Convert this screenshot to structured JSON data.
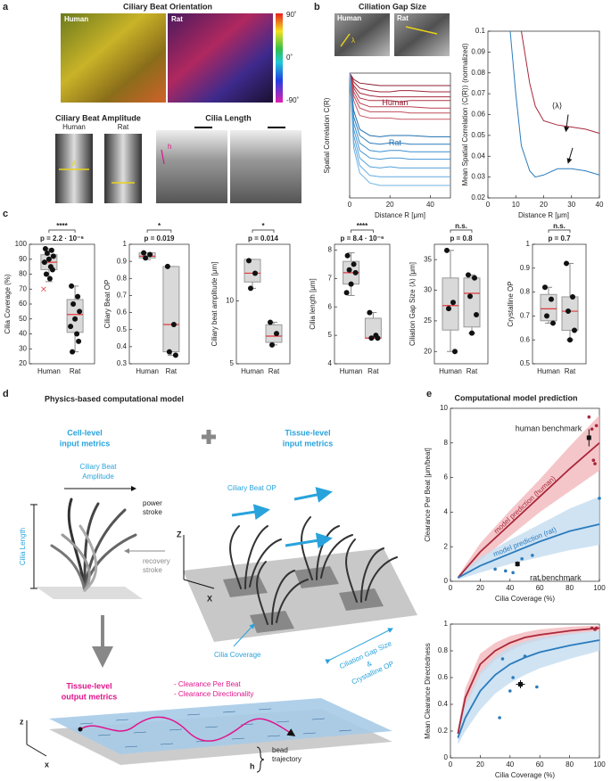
{
  "figure": {
    "panel_letters": [
      "a",
      "b",
      "c",
      "d",
      "e"
    ],
    "a": {
      "title": "Ciliary Beat Orientation",
      "human": "Human",
      "rat": "Rat",
      "colorbar": [
        "90˚",
        "0˚",
        "-90˚"
      ],
      "amplitude_title": "Ciliary Beat Amplitude",
      "amplitude_labels": [
        "Human",
        "Rat"
      ],
      "amplitude_marker": "A",
      "length_title": "Cilia Length",
      "length_marker": "h"
    },
    "b": {
      "title": "Ciliation Gap Size",
      "labels": [
        "Human",
        "Rat"
      ],
      "marker": "λ"
    },
    "d": {
      "title": "Physics-based computational model",
      "cell_level": [
        "Cell-level",
        "input metrics"
      ],
      "tissue_level": [
        "Tissue-level",
        "input metrics"
      ],
      "amplitude": [
        "Ciliary Beat",
        "Amplitude"
      ],
      "power": [
        "power",
        "stroke"
      ],
      "length": "Cilia Length",
      "recovery": [
        "recovery",
        "stroke"
      ],
      "beat_op": "Ciliary Beat OP",
      "coverage": "Cilia Coverage",
      "gap": [
        "Ciliation Gap Size",
        "&",
        "Crystalline OP"
      ],
      "axes": [
        "Z",
        "X"
      ],
      "output": [
        "Tissue-level",
        "output metrics"
      ],
      "metrics": [
        "- Clearance Per Beat",
        "- Clearance Directionality"
      ],
      "sheet_axes": [
        "z",
        "x"
      ],
      "h": "h",
      "bead": [
        "bead",
        "trajectory"
      ]
    }
  },
  "chart_data": [
    {
      "type": "line",
      "ylabel": "Spatial Correlation C(R)",
      "xlabel": "Distance R [μm]",
      "xlim": [
        0,
        50
      ],
      "xticks": [
        0,
        20,
        40
      ],
      "ylim": [
        0,
        1
      ],
      "x": [
        0,
        2,
        5,
        10,
        15,
        20,
        25,
        30,
        40,
        50
      ],
      "series": [
        {
          "color": "#8c1d33",
          "values": [
            1,
            0.95,
            0.92,
            0.91,
            0.9,
            0.9,
            0.9,
            0.9,
            0.9,
            0.9
          ]
        },
        {
          "color": "#9e2438",
          "values": [
            1,
            0.93,
            0.88,
            0.86,
            0.85,
            0.85,
            0.86,
            0.86,
            0.85,
            0.85
          ]
        },
        {
          "color": "#a8283b",
          "values": [
            1,
            0.9,
            0.84,
            0.82,
            0.81,
            0.81,
            0.81,
            0.81,
            0.81,
            0.81
          ]
        },
        {
          "color": "#b03344",
          "values": [
            1,
            0.88,
            0.8,
            0.78,
            0.78,
            0.78,
            0.77,
            0.78,
            0.78,
            0.78
          ]
        },
        {
          "color": "#b8404f",
          "values": [
            1,
            0.85,
            0.76,
            0.73,
            0.73,
            0.73,
            0.73,
            0.73,
            0.72,
            0.72
          ]
        },
        {
          "color": "#c04d5b",
          "values": [
            1,
            0.82,
            0.72,
            0.69,
            0.69,
            0.69,
            0.69,
            0.68,
            0.68,
            0.68
          ]
        },
        {
          "color": "#c85a66",
          "values": [
            1,
            0.78,
            0.66,
            0.64,
            0.64,
            0.64,
            0.63,
            0.63,
            0.63,
            0.63
          ]
        },
        {
          "color": "#1f6fb0",
          "values": [
            1,
            0.7,
            0.55,
            0.5,
            0.49,
            0.5,
            0.5,
            0.5,
            0.49,
            0.49
          ]
        },
        {
          "color": "#2b7bbd",
          "values": [
            1,
            0.65,
            0.5,
            0.44,
            0.43,
            0.44,
            0.44,
            0.43,
            0.43,
            0.43
          ]
        },
        {
          "color": "#3a8fd0",
          "values": [
            1,
            0.6,
            0.44,
            0.38,
            0.37,
            0.38,
            0.38,
            0.37,
            0.37,
            0.37
          ]
        },
        {
          "color": "#4898d6",
          "values": [
            1,
            0.55,
            0.38,
            0.32,
            0.31,
            0.32,
            0.32,
            0.31,
            0.31,
            0.31
          ]
        },
        {
          "color": "#55a1dc",
          "values": [
            1,
            0.5,
            0.32,
            0.25,
            0.24,
            0.25,
            0.24,
            0.24,
            0.24,
            0.24
          ]
        },
        {
          "color": "#62aae0",
          "values": [
            1,
            0.45,
            0.26,
            0.18,
            0.17,
            0.17,
            0.17,
            0.17,
            0.17,
            0.17
          ]
        },
        {
          "color": "#70b3e4",
          "values": [
            1,
            0.4,
            0.2,
            0.12,
            0.1,
            0.1,
            0.1,
            0.1,
            0.1,
            0.1
          ]
        }
      ],
      "annotations": [
        "Human",
        "Rat"
      ]
    },
    {
      "type": "line",
      "ylabel": "Mean Spatial Correlation ⟨C(R)⟩ (normalized)",
      "xlabel": "Distance R [μm]",
      "xlim": [
        0,
        40
      ],
      "xticks": [
        0,
        10,
        20,
        30,
        40
      ],
      "ylim": [
        0.02,
        0.1
      ],
      "yticks": [
        0.02,
        0.03,
        0.04,
        0.05,
        0.06,
        0.07,
        0.08,
        0.09,
        0.1
      ],
      "x": [
        8,
        10,
        12,
        15,
        17,
        20,
        25,
        30,
        35,
        40
      ],
      "series": [
        {
          "color": "#a8283b",
          "values": [
            null,
            null,
            0.1,
            0.075,
            0.064,
            0.057,
            0.055,
            0.054,
            0.053,
            0.051
          ]
        },
        {
          "color": "#2b7bbd",
          "values": [
            0.1,
            0.07,
            0.045,
            0.033,
            0.03,
            0.031,
            0.034,
            0.034,
            0.033,
            0.031
          ]
        }
      ],
      "annotations": [
        "⟨λ⟩"
      ]
    },
    {
      "type": "box",
      "ylabel": "Cilia Coverage (%)",
      "categories": [
        "Human",
        "Rat"
      ],
      "ylim": [
        20,
        100
      ],
      "yticks": [
        20,
        30,
        40,
        50,
        60,
        70,
        80,
        90,
        100
      ],
      "sig": "****",
      "p": "p = 2.2 · 10⁻⁶",
      "box_color": "#d9d9d9",
      "median_color": "#e0393e",
      "groups": [
        {
          "q1": 83,
          "median": 88,
          "q3": 93,
          "low": 75,
          "high": 97,
          "points": [
            97,
            96,
            94,
            92,
            90,
            88,
            85,
            83,
            80,
            77
          ],
          "outliers": [
            70
          ]
        },
        {
          "q1": 41,
          "median": 53,
          "q3": 63,
          "low": 28,
          "high": 72,
          "points": [
            72,
            65,
            60,
            55,
            50,
            45,
            40,
            35,
            28
          ],
          "outliers": []
        }
      ]
    },
    {
      "type": "box",
      "ylabel": "Ciliary Beat OP",
      "categories": [
        "Human",
        "Rat"
      ],
      "ylim": [
        0.3,
        1
      ],
      "yticks": [
        0.3,
        0.4,
        0.5,
        0.6,
        0.7,
        0.8,
        0.9,
        1
      ],
      "sig": "*",
      "p": "p = 0.019",
      "box_color": "#d9d9d9",
      "median_color": "#e0393e",
      "groups": [
        {
          "q1": 0.92,
          "median": 0.93,
          "q3": 0.95,
          "low": 0.91,
          "high": 0.95,
          "points": [
            0.95,
            0.94,
            0.92
          ],
          "outliers": []
        },
        {
          "q1": 0.37,
          "median": 0.53,
          "q3": 0.87,
          "low": 0.35,
          "high": 0.87,
          "points": [
            0.87,
            0.53,
            0.37,
            0.35
          ],
          "outliers": []
        }
      ]
    },
    {
      "type": "box",
      "ylabel": "Ciliary beat amplitude [μm]",
      "categories": [
        "Human",
        "Rat"
      ],
      "ylim": [
        5,
        14.5
      ],
      "yticks": [
        5,
        10
      ],
      "sig": "*",
      "p": "p = 0.014",
      "box_color": "#d9d9d9",
      "median_color": "#e0393e",
      "groups": [
        {
          "q1": 11.5,
          "median": 12.2,
          "q3": 13.3,
          "low": 11,
          "high": 13.3,
          "points": [
            13.2,
            12.2,
            11
          ],
          "outliers": []
        },
        {
          "q1": 6.7,
          "median": 7.2,
          "q3": 8.1,
          "low": 6.5,
          "high": 8.3,
          "points": [
            8.3,
            7.4,
            6.5
          ],
          "outliers": []
        }
      ]
    },
    {
      "type": "box",
      "ylabel": "Cilia length [μm]",
      "categories": [
        "Human",
        "Rat"
      ],
      "ylim": [
        4,
        8.2
      ],
      "yticks": [
        4,
        5,
        6,
        7,
        8
      ],
      "sig": "****",
      "p": "p = 8.4 · 10⁻⁶",
      "box_color": "#d9d9d9",
      "median_color": "#e0393e",
      "groups": [
        {
          "q1": 6.8,
          "median": 7.2,
          "q3": 7.6,
          "low": 6.4,
          "high": 7.9,
          "points": [
            7.8,
            7.5,
            7.3,
            7.2,
            6.8,
            6.5
          ],
          "outliers": []
        },
        {
          "q1": 4.9,
          "median": 4.9,
          "q3": 5.6,
          "low": 4.9,
          "high": 5.8,
          "points": [
            5.8,
            5,
            4.9,
            4.9
          ],
          "outliers": []
        }
      ]
    },
    {
      "type": "box",
      "ylabel": "Ciliation Gap Size ⟨λ⟩ [μm]",
      "categories": [
        "Human",
        "Rat"
      ],
      "ylim": [
        18,
        37.5
      ],
      "yticks": [
        20,
        25,
        30,
        35
      ],
      "sig": "n.s.",
      "p": "p = 0.8",
      "box_color": "#d9d9d9",
      "median_color": "#e0393e",
      "groups": [
        {
          "q1": 23.5,
          "median": 27.5,
          "q3": 32,
          "low": 20,
          "high": 36.5,
          "points": [
            36.5,
            28,
            27,
            20
          ],
          "outliers": []
        },
        {
          "q1": 24,
          "median": 29.5,
          "q3": 32,
          "low": 23,
          "high": 32.5,
          "points": [
            32.5,
            32,
            29,
            26,
            23
          ],
          "outliers": []
        }
      ]
    },
    {
      "type": "box",
      "ylabel": "Crystalline OP",
      "categories": [
        "Human",
        "Rat"
      ],
      "ylim": [
        0.5,
        1
      ],
      "yticks": [
        0.5,
        0.6,
        0.7,
        0.8,
        0.9,
        1
      ],
      "sig": "n.s.",
      "p": "p = 0.7",
      "box_color": "#d9d9d9",
      "median_color": "#e0393e",
      "groups": [
        {
          "q1": 0.68,
          "median": 0.73,
          "q3": 0.79,
          "low": 0.67,
          "high": 0.82,
          "points": [
            0.82,
            0.77,
            0.7,
            0.67
          ],
          "outliers": []
        },
        {
          "q1": 0.64,
          "median": 0.72,
          "q3": 0.78,
          "low": 0.6,
          "high": 0.92,
          "points": [
            0.92,
            0.78,
            0.72,
            0.64,
            0.6
          ],
          "outliers": []
        }
      ]
    },
    {
      "type": "line",
      "title": "Computational model prediction",
      "ylabel": "Clearance Per Beat [μm/beat]",
      "xlabel": "Cilia Coverage (%)",
      "xlim": [
        0,
        100
      ],
      "xticks": [
        0,
        20,
        40,
        60,
        80,
        100
      ],
      "ylim": [
        0,
        10
      ],
      "yticks": [
        0,
        2,
        4,
        6,
        8,
        10
      ],
      "x": [
        5,
        20,
        40,
        60,
        80,
        100
      ],
      "series": [
        {
          "name": "model prediction (human)",
          "color": "#a8283b",
          "band_color": "#f2b8bb",
          "values": [
            0.2,
            1.7,
            3.3,
            4.9,
            6.5,
            8
          ],
          "lower": [
            0.15,
            1.2,
            2.6,
            4,
            5.2,
            6.4
          ],
          "upper": [
            0.3,
            2.2,
            4.1,
            5.9,
            7.8,
            9.6
          ]
        },
        {
          "name": "model prediction (rat)",
          "color": "#2b7bbd",
          "band_color": "#c3dcf0",
          "values": [
            0.2,
            0.9,
            1.6,
            2.3,
            2.9,
            3.3
          ],
          "lower": [
            0.1,
            0.5,
            1,
            1.4,
            1.8,
            2.1
          ],
          "upper": [
            0.3,
            1.4,
            2.4,
            3.3,
            4.2,
            4.9
          ]
        }
      ],
      "points": [
        {
          "color": "#a8283b",
          "x": [
            93,
            95,
            96,
            97,
            98
          ],
          "y": [
            9.5,
            8.8,
            7,
            6.8,
            9
          ]
        },
        {
          "color": "#2b7bbd",
          "x": [
            30,
            37,
            42,
            48,
            55,
            100
          ],
          "y": [
            0.7,
            0.6,
            0.5,
            1.3,
            1.5,
            4.8
          ]
        }
      ],
      "benchmarks": [
        {
          "label": "human benchmark",
          "x": 93,
          "y": 8.3,
          "yerr": 0.5
        },
        {
          "label": "rat benchmark",
          "x": 45,
          "y": 1,
          "yerr": 0.15
        }
      ]
    },
    {
      "type": "line",
      "ylabel": "Mean Clearance Directedness",
      "xlabel": "Cilia Coverage (%)",
      "xlim": [
        0,
        100
      ],
      "xticks": [
        0,
        20,
        40,
        60,
        80,
        100
      ],
      "ylim": [
        0,
        1
      ],
      "yticks": [
        0,
        0.2,
        0.4,
        0.6,
        0.8,
        1
      ],
      "x": [
        5,
        10,
        20,
        30,
        40,
        50,
        60,
        80,
        100
      ],
      "series": [
        {
          "color": "#a8283b",
          "band_color": "#f2b8bb",
          "values": [
            0.18,
            0.45,
            0.7,
            0.8,
            0.86,
            0.9,
            0.92,
            0.95,
            0.97
          ],
          "lower": [
            0.14,
            0.38,
            0.62,
            0.73,
            0.8,
            0.85,
            0.88,
            0.92,
            0.95
          ],
          "upper": [
            0.22,
            0.52,
            0.78,
            0.86,
            0.91,
            0.94,
            0.96,
            0.98,
            0.99
          ]
        },
        {
          "color": "#2b7bbd",
          "band_color": "#c3dcf0",
          "values": [
            0.15,
            0.3,
            0.5,
            0.62,
            0.7,
            0.75,
            0.79,
            0.84,
            0.88
          ],
          "lower": [
            0.1,
            0.2,
            0.36,
            0.48,
            0.56,
            0.62,
            0.67,
            0.74,
            0.8
          ],
          "upper": [
            0.2,
            0.4,
            0.64,
            0.76,
            0.83,
            0.87,
            0.9,
            0.93,
            0.95
          ]
        }
      ],
      "points": [
        {
          "color": "#2b7bbd",
          "x": [
            33,
            35,
            40,
            42,
            50,
            58
          ],
          "y": [
            0.3,
            0.74,
            0.5,
            0.6,
            0.76,
            0.53
          ]
        },
        {
          "color": "#a8283b",
          "x": [
            95,
            97,
            98
          ],
          "y": [
            0.97,
            0.96,
            0.97
          ]
        }
      ],
      "benchmarks": [
        {
          "x": 47,
          "y": 0.55,
          "yerr": 0.03,
          "xerr": 3
        }
      ]
    }
  ]
}
